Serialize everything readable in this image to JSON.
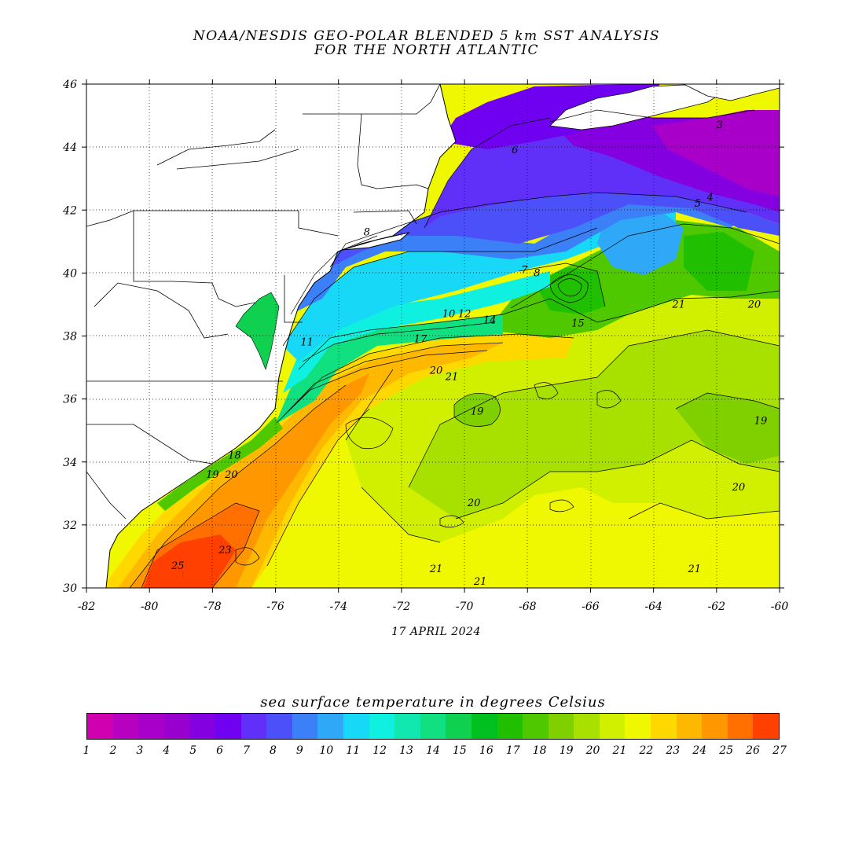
{
  "title_line1": "NOAA/NESDIS GEO-POLAR BLENDED 5 km SST ANALYSIS",
  "title_line2": "FOR THE NORTH ATLANTIC",
  "date": "17 APRIL 2024",
  "colorbar": {
    "title": "sea surface temperature in degrees Celsius",
    "labels": [
      "1",
      "2",
      "3",
      "4",
      "5",
      "6",
      "7",
      "8",
      "9",
      "10",
      "11",
      "12",
      "13",
      "14",
      "15",
      "16",
      "17",
      "18",
      "19",
      "20",
      "21",
      "22",
      "23",
      "24",
      "25",
      "26",
      "27"
    ],
    "colors": [
      "#d000b0",
      "#b800c0",
      "#a800c8",
      "#9800d0",
      "#8400e0",
      "#7000f0",
      "#6030f8",
      "#4c50f8",
      "#3c80f8",
      "#30a8f8",
      "#18d8f8",
      "#10f0e0",
      "#10e8b0",
      "#10e080",
      "#10d050",
      "#00c020",
      "#20c000",
      "#50c800",
      "#80d000",
      "#a8e000",
      "#d0f000",
      "#f0f800",
      "#ffd800",
      "#ffb800",
      "#ff9800",
      "#ff7000",
      "#ff4000"
    ]
  },
  "axes": {
    "x_ticks": [
      "-82",
      "-80",
      "-78",
      "-76",
      "-74",
      "-72",
      "-70",
      "-68",
      "-66",
      "-64",
      "-62",
      "-60"
    ],
    "y_ticks": [
      "46",
      "44",
      "42",
      "40",
      "38",
      "36",
      "34",
      "32",
      "30"
    ]
  },
  "contour_labels": [
    {
      "text": "3",
      "lon": -61.9,
      "lat": 44.6
    },
    {
      "text": "4",
      "lon": -62.2,
      "lat": 42.3
    },
    {
      "text": "5",
      "lon": -62.6,
      "lat": 42.1
    },
    {
      "text": "6",
      "lon": -68.4,
      "lat": 43.8
    },
    {
      "text": "8",
      "lon": -73.1,
      "lat": 41.2
    },
    {
      "text": "7",
      "lon": -68.1,
      "lat": 40.0
    },
    {
      "text": "8",
      "lon": -67.7,
      "lat": 39.9
    },
    {
      "text": "11",
      "lon": -75.0,
      "lat": 37.7
    },
    {
      "text": "10",
      "lon": -70.5,
      "lat": 38.6
    },
    {
      "text": "12",
      "lon": -70.0,
      "lat": 38.6
    },
    {
      "text": "14",
      "lon": -69.2,
      "lat": 38.4
    },
    {
      "text": "17",
      "lon": -71.4,
      "lat": 37.8
    },
    {
      "text": "15",
      "lon": -66.4,
      "lat": 38.3
    },
    {
      "text": "21",
      "lon": -63.2,
      "lat": 38.9
    },
    {
      "text": "20",
      "lon": -60.8,
      "lat": 38.9
    },
    {
      "text": "20",
      "lon": -70.9,
      "lat": 36.8
    },
    {
      "text": "21",
      "lon": -70.4,
      "lat": 36.6
    },
    {
      "text": "19",
      "lon": -69.6,
      "lat": 35.5
    },
    {
      "text": "19",
      "lon": -60.6,
      "lat": 35.2
    },
    {
      "text": "18",
      "lon": -77.3,
      "lat": 34.1
    },
    {
      "text": "19",
      "lon": -78.0,
      "lat": 33.5
    },
    {
      "text": "20",
      "lon": -77.4,
      "lat": 33.5
    },
    {
      "text": "20",
      "lon": -69.7,
      "lat": 32.6
    },
    {
      "text": "20",
      "lon": -61.3,
      "lat": 33.1
    },
    {
      "text": "25",
      "lon": -79.1,
      "lat": 30.6
    },
    {
      "text": "23",
      "lon": -77.6,
      "lat": 31.1
    },
    {
      "text": "21",
      "lon": -70.9,
      "lat": 30.5
    },
    {
      "text": "21",
      "lon": -69.5,
      "lat": 30.1
    },
    {
      "text": "21",
      "lon": -62.7,
      "lat": 30.5
    }
  ]
}
